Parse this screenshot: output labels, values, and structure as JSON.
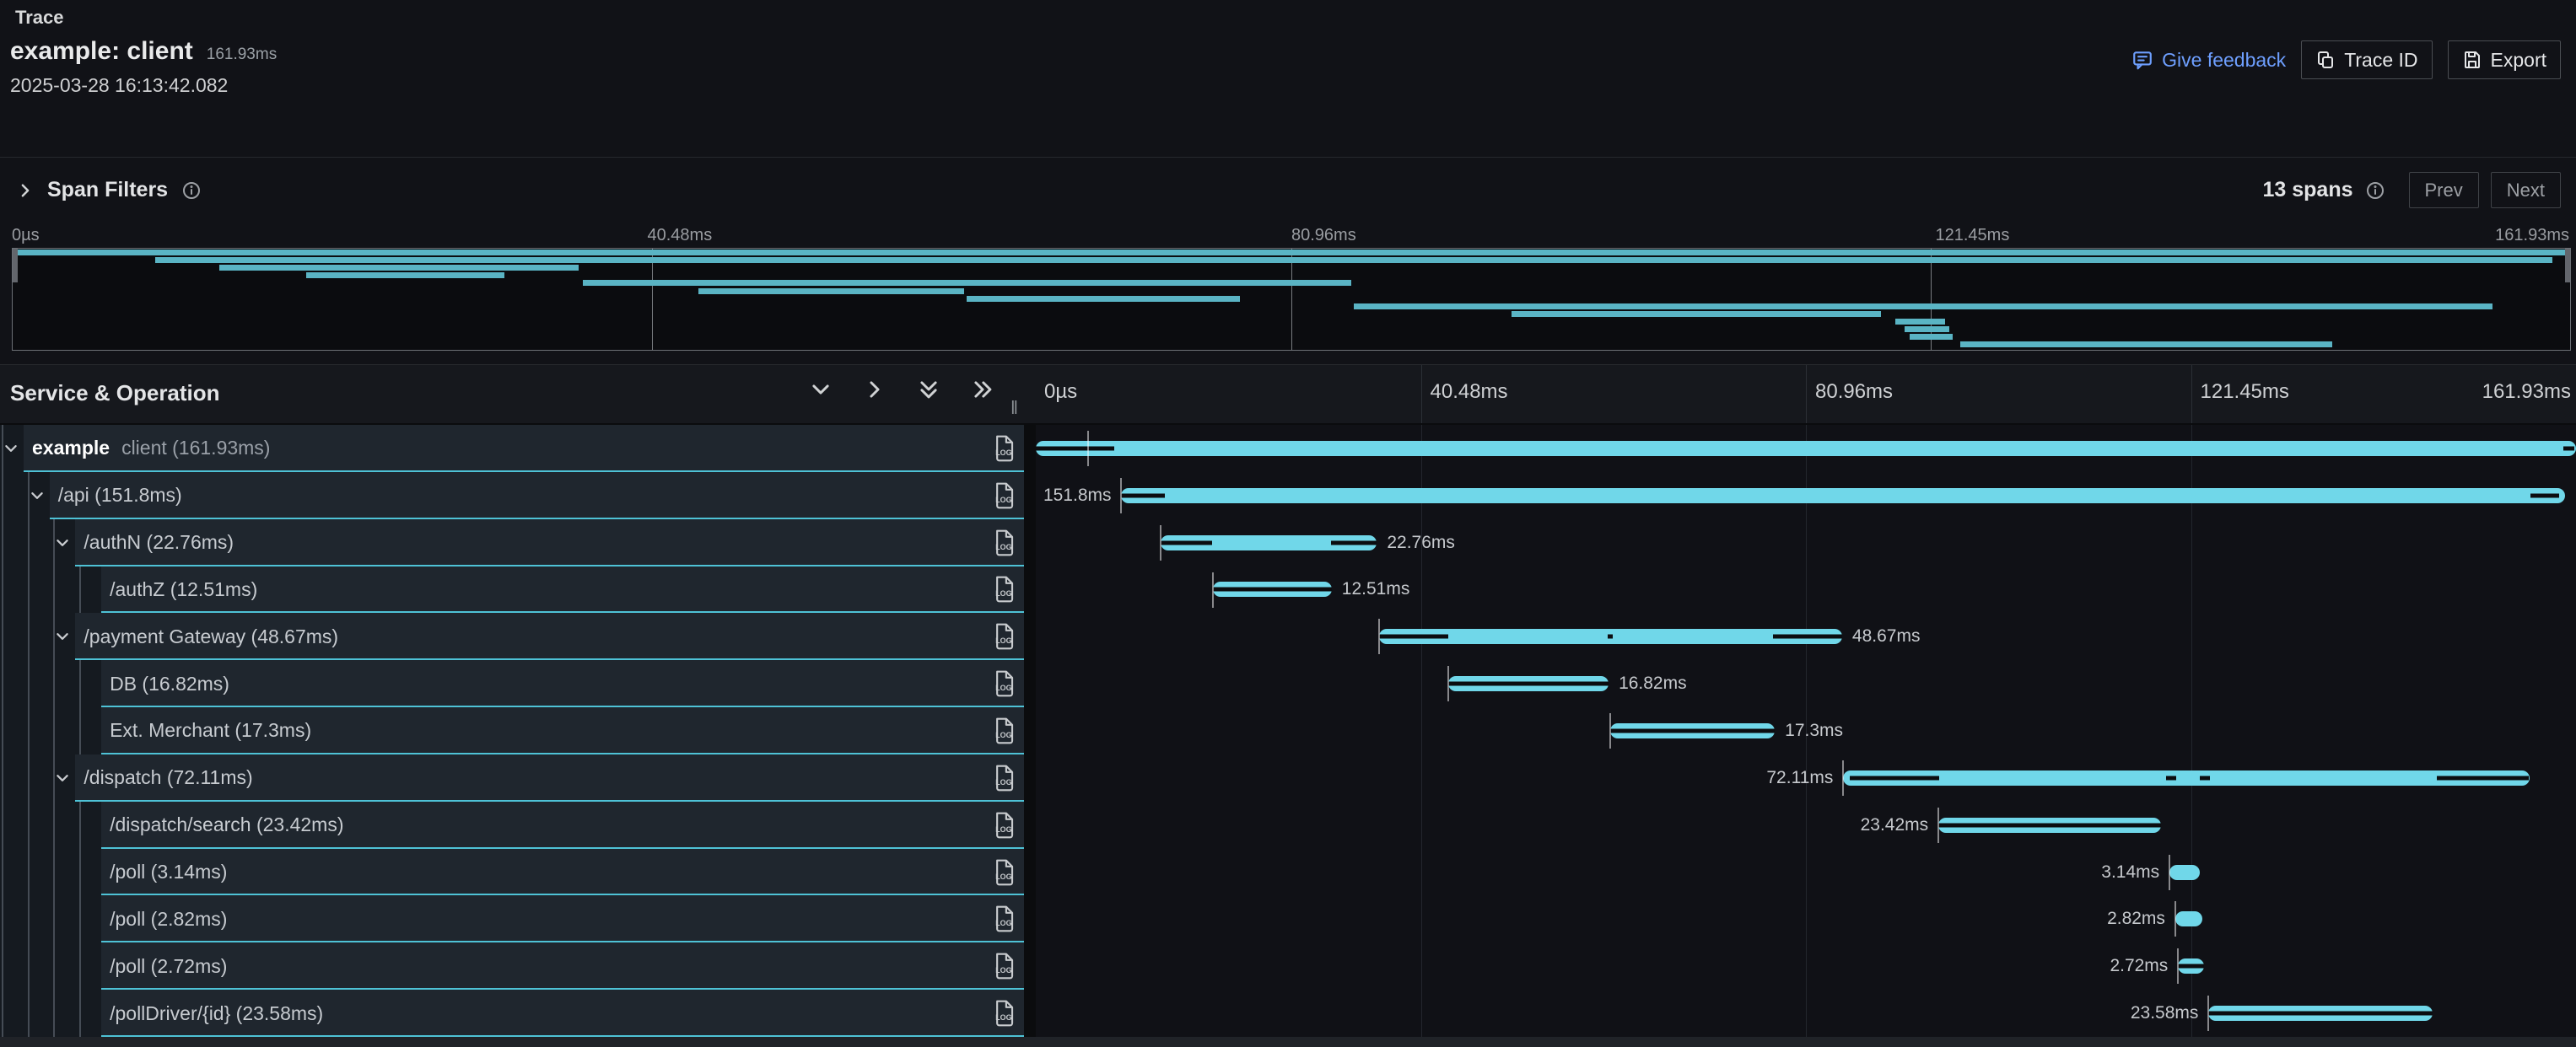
{
  "header": {
    "breadcrumb": "Trace",
    "title": "example: client",
    "duration": "161.93ms",
    "timestamp": "2025-03-28 16:13:42.082",
    "feedback_label": "Give feedback",
    "trace_id_label": "Trace ID",
    "export_label": "Export"
  },
  "filters": {
    "label": "Span Filters",
    "span_count": "13 spans",
    "prev_label": "Prev",
    "next_label": "Next"
  },
  "minimap": {
    "ticks": [
      "0µs",
      "40.48ms",
      "80.96ms",
      "121.45ms",
      "161.93ms"
    ]
  },
  "grid": {
    "left_header": "Service & Operation",
    "ticks": [
      "0µs",
      "40.48ms",
      "80.96ms",
      "121.45ms",
      "161.93ms"
    ]
  },
  "colors": {
    "span_bar": "#70d7e9",
    "row_underline": "#4ec2d6",
    "minimap_bar": "#5ab4c4",
    "link_blue": "#6e9fff",
    "critical_path": "#0b0d10"
  },
  "trace_total_ms": 161.93,
  "spans": [
    {
      "service": "example",
      "operation": "client (161.93ms)",
      "depth": 0,
      "expandable": true,
      "start_ms": 0.0,
      "duration_ms": 161.93,
      "duration_label": "161.93ms",
      "label_side": "none",
      "tick_ms": 5.5,
      "critical": [
        [
          0,
          0.051
        ],
        [
          0.992,
          0.999
        ]
      ]
    },
    {
      "service": "",
      "operation": "/api (151.8ms)",
      "depth": 1,
      "expandable": true,
      "start_ms": 9.0,
      "duration_ms": 151.8,
      "duration_label": "151.8ms",
      "label_side": "left",
      "tick_ms": 9.0,
      "critical": [
        [
          0,
          0.03
        ],
        [
          0.976,
          0.996
        ]
      ]
    },
    {
      "service": "",
      "operation": "/authN (22.76ms)",
      "depth": 2,
      "expandable": true,
      "start_ms": 13.1,
      "duration_ms": 22.76,
      "duration_label": "22.76ms",
      "label_side": "right",
      "tick_ms": 13.1,
      "critical": [
        [
          0,
          0.24
        ],
        [
          0.79,
          1
        ]
      ]
    },
    {
      "service": "",
      "operation": "/authZ (12.51ms)",
      "depth": 3,
      "expandable": false,
      "start_ms": 18.6,
      "duration_ms": 12.51,
      "duration_label": "12.51ms",
      "label_side": "right",
      "tick_ms": 18.6,
      "critical": [
        [
          0,
          1
        ]
      ]
    },
    {
      "service": "",
      "operation": "/payment Gateway (48.67ms)",
      "depth": 2,
      "expandable": true,
      "start_ms": 36.1,
      "duration_ms": 48.67,
      "duration_label": "48.67ms",
      "label_side": "right",
      "tick_ms": 36.1,
      "critical": [
        [
          0,
          0.15
        ],
        [
          0.493,
          0.505
        ],
        [
          0.85,
          1
        ]
      ]
    },
    {
      "service": "",
      "operation": "DB (16.82ms)",
      "depth": 3,
      "expandable": false,
      "start_ms": 43.4,
      "duration_ms": 16.82,
      "duration_label": "16.82ms",
      "label_side": "right",
      "tick_ms": 43.4,
      "critical": [
        [
          0,
          1
        ]
      ]
    },
    {
      "service": "",
      "operation": "Ext. Merchant (17.3ms)",
      "depth": 3,
      "expandable": false,
      "start_ms": 60.4,
      "duration_ms": 17.3,
      "duration_label": "17.3ms",
      "label_side": "right",
      "tick_ms": 60.4,
      "critical": [
        [
          0,
          1
        ]
      ]
    },
    {
      "service": "",
      "operation": "/dispatch (72.11ms)",
      "depth": 2,
      "expandable": true,
      "start_ms": 84.9,
      "duration_ms": 72.11,
      "duration_label": "72.11ms",
      "label_side": "left",
      "tick_ms": 84.9,
      "critical": [
        [
          0.01,
          0.14
        ],
        [
          0.47,
          0.485
        ],
        [
          0.52,
          0.535
        ],
        [
          0.865,
          1
        ]
      ]
    },
    {
      "service": "",
      "operation": "/dispatch/search (23.42ms)",
      "depth": 3,
      "expandable": false,
      "start_ms": 94.9,
      "duration_ms": 23.42,
      "duration_label": "23.42ms",
      "label_side": "left",
      "tick_ms": 94.9,
      "critical": [
        [
          0,
          1
        ]
      ]
    },
    {
      "service": "",
      "operation": "/poll (3.14ms)",
      "depth": 3,
      "expandable": false,
      "start_ms": 119.2,
      "duration_ms": 3.14,
      "duration_label": "3.14ms",
      "label_side": "left",
      "tick_ms": 119.2,
      "critical": []
    },
    {
      "service": "",
      "operation": "/poll (2.82ms)",
      "depth": 3,
      "expandable": false,
      "start_ms": 119.8,
      "duration_ms": 2.82,
      "duration_label": "2.82ms",
      "label_side": "left",
      "tick_ms": 119.8,
      "critical": []
    },
    {
      "service": "",
      "operation": "/poll (2.72ms)",
      "depth": 3,
      "expandable": false,
      "start_ms": 120.1,
      "duration_ms": 2.72,
      "duration_label": "2.72ms",
      "label_side": "left",
      "tick_ms": 120.1,
      "critical": [
        [
          0,
          1
        ]
      ]
    },
    {
      "service": "",
      "operation": "/pollDriver/{id} (23.58ms)",
      "depth": 3,
      "expandable": false,
      "start_ms": 123.3,
      "duration_ms": 23.58,
      "duration_label": "23.58ms",
      "label_side": "left",
      "tick_ms": 123.3,
      "critical": [
        [
          0,
          1
        ]
      ]
    }
  ]
}
